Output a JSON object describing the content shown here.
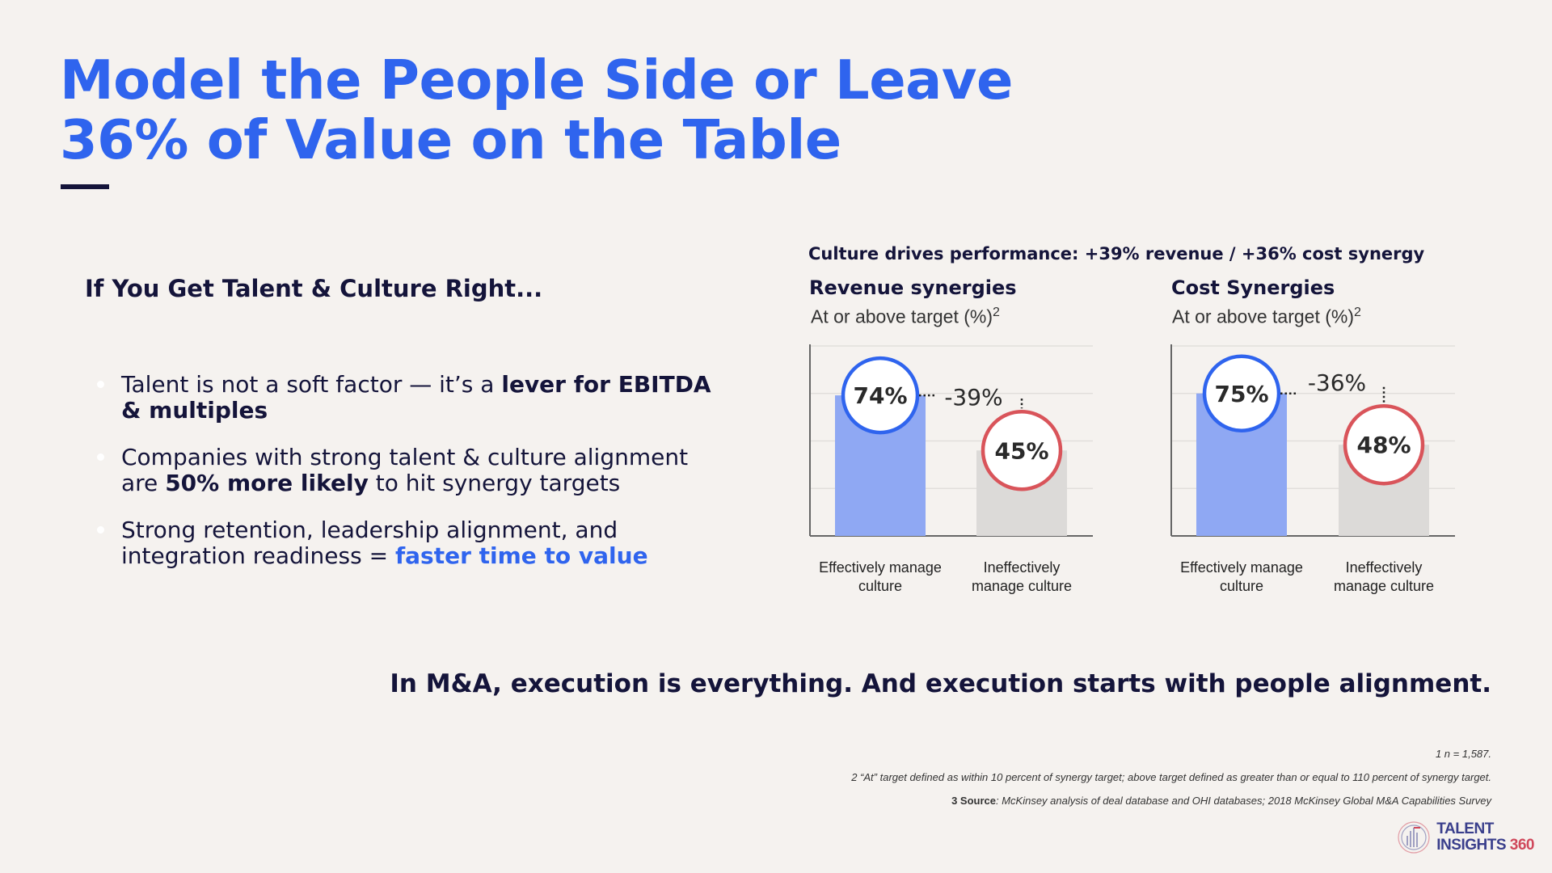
{
  "title": {
    "line1": "Model the People Side or Leave",
    "line2": "36% of Value on the Table"
  },
  "left": {
    "heading": "If You Get Talent & Culture Right...",
    "bullets": [
      {
        "pre": "Talent is not a soft factor — it’s a ",
        "strong": "lever for EBITDA & multiples",
        "post": ""
      },
      {
        "pre": "Companies with strong talent & culture alignment are ",
        "strong": "50% more likely",
        "post": " to hit synergy targets"
      },
      {
        "pre": "Strong retention, leadership alignment, and integration readiness = ",
        "accent": "faster time to value"
      }
    ]
  },
  "chart_header": "Culture drives performance: +39% revenue / +36% cost synergy",
  "colors": {
    "title_blue": "#2f64ee",
    "bar_blue": "#8fa8f3",
    "bar_gray": "#dcdad8",
    "circle_blue": "#2f64ee",
    "circle_red": "#d9545a",
    "navy": "#14143a"
  },
  "chart_data": [
    {
      "type": "bar",
      "title": "Revenue synergies",
      "ylabel": "At or above target (%)",
      "ylabel_sup": "2",
      "categories": [
        "Effectively manage culture",
        "Ineffectively manage culture"
      ],
      "values": [
        74,
        45
      ],
      "value_labels": [
        "74%",
        "45%"
      ],
      "delta_label": "-39%",
      "ylim": [
        0,
        100
      ],
      "grid": true
    },
    {
      "type": "bar",
      "title": "Cost Synergies",
      "ylabel": "At or above target (%)",
      "ylabel_sup": "2",
      "categories": [
        "Effectively manage culture",
        "Ineffectively manage culture"
      ],
      "values": [
        75,
        48
      ],
      "value_labels": [
        "75%",
        "48%"
      ],
      "delta_label": "-36%",
      "ylim": [
        0,
        100
      ],
      "grid": true
    }
  ],
  "closing": "In M&A, execution is everything. And execution starts with people alignment.",
  "footnotes": {
    "n1": "1 n = 1,587.",
    "n2": "2 “At” target defined as within 10 percent of synergy target; above target defined as greater than or equal to 110 percent of synergy target.",
    "n3_label": "3 Source",
    "n3_text": ": McKinsey analysis of deal database and OHI databases; 2018 McKinsey Global M&A Capabilities Survey"
  },
  "logo": {
    "line1": "TALENT",
    "line2_word": "INSIGHTS",
    "line2_num": "360"
  }
}
